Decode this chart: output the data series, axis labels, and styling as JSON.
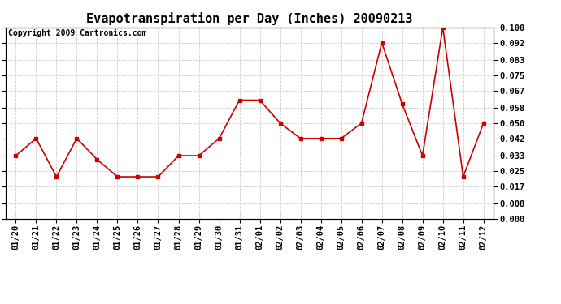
{
  "title": "Evapotranspiration per Day (Inches) 20090213",
  "copyright_text": "Copyright 2009 Cartronics.com",
  "x_labels": [
    "01/20",
    "01/21",
    "01/22",
    "01/23",
    "01/24",
    "01/25",
    "01/26",
    "01/27",
    "01/28",
    "01/29",
    "01/30",
    "01/31",
    "02/01",
    "02/02",
    "02/03",
    "02/04",
    "02/05",
    "02/06",
    "02/07",
    "02/08",
    "02/09",
    "02/10",
    "02/11",
    "02/12"
  ],
  "y_values": [
    0.033,
    0.042,
    0.022,
    0.042,
    0.031,
    0.022,
    0.022,
    0.022,
    0.033,
    0.033,
    0.042,
    0.062,
    0.062,
    0.05,
    0.042,
    0.042,
    0.042,
    0.05,
    0.092,
    0.06,
    0.033,
    0.1,
    0.022,
    0.05
  ],
  "line_color": "#cc0000",
  "marker": "s",
  "marker_size": 3,
  "bg_color": "#ffffff",
  "plot_bg_color": "#ffffff",
  "grid_color": "#cccccc",
  "ylim": [
    0.0,
    0.1
  ],
  "yticks": [
    0.0,
    0.008,
    0.017,
    0.025,
    0.033,
    0.042,
    0.05,
    0.058,
    0.067,
    0.075,
    0.083,
    0.092,
    0.1
  ],
  "title_fontsize": 11,
  "copyright_fontsize": 7,
  "tick_fontsize": 7.5
}
